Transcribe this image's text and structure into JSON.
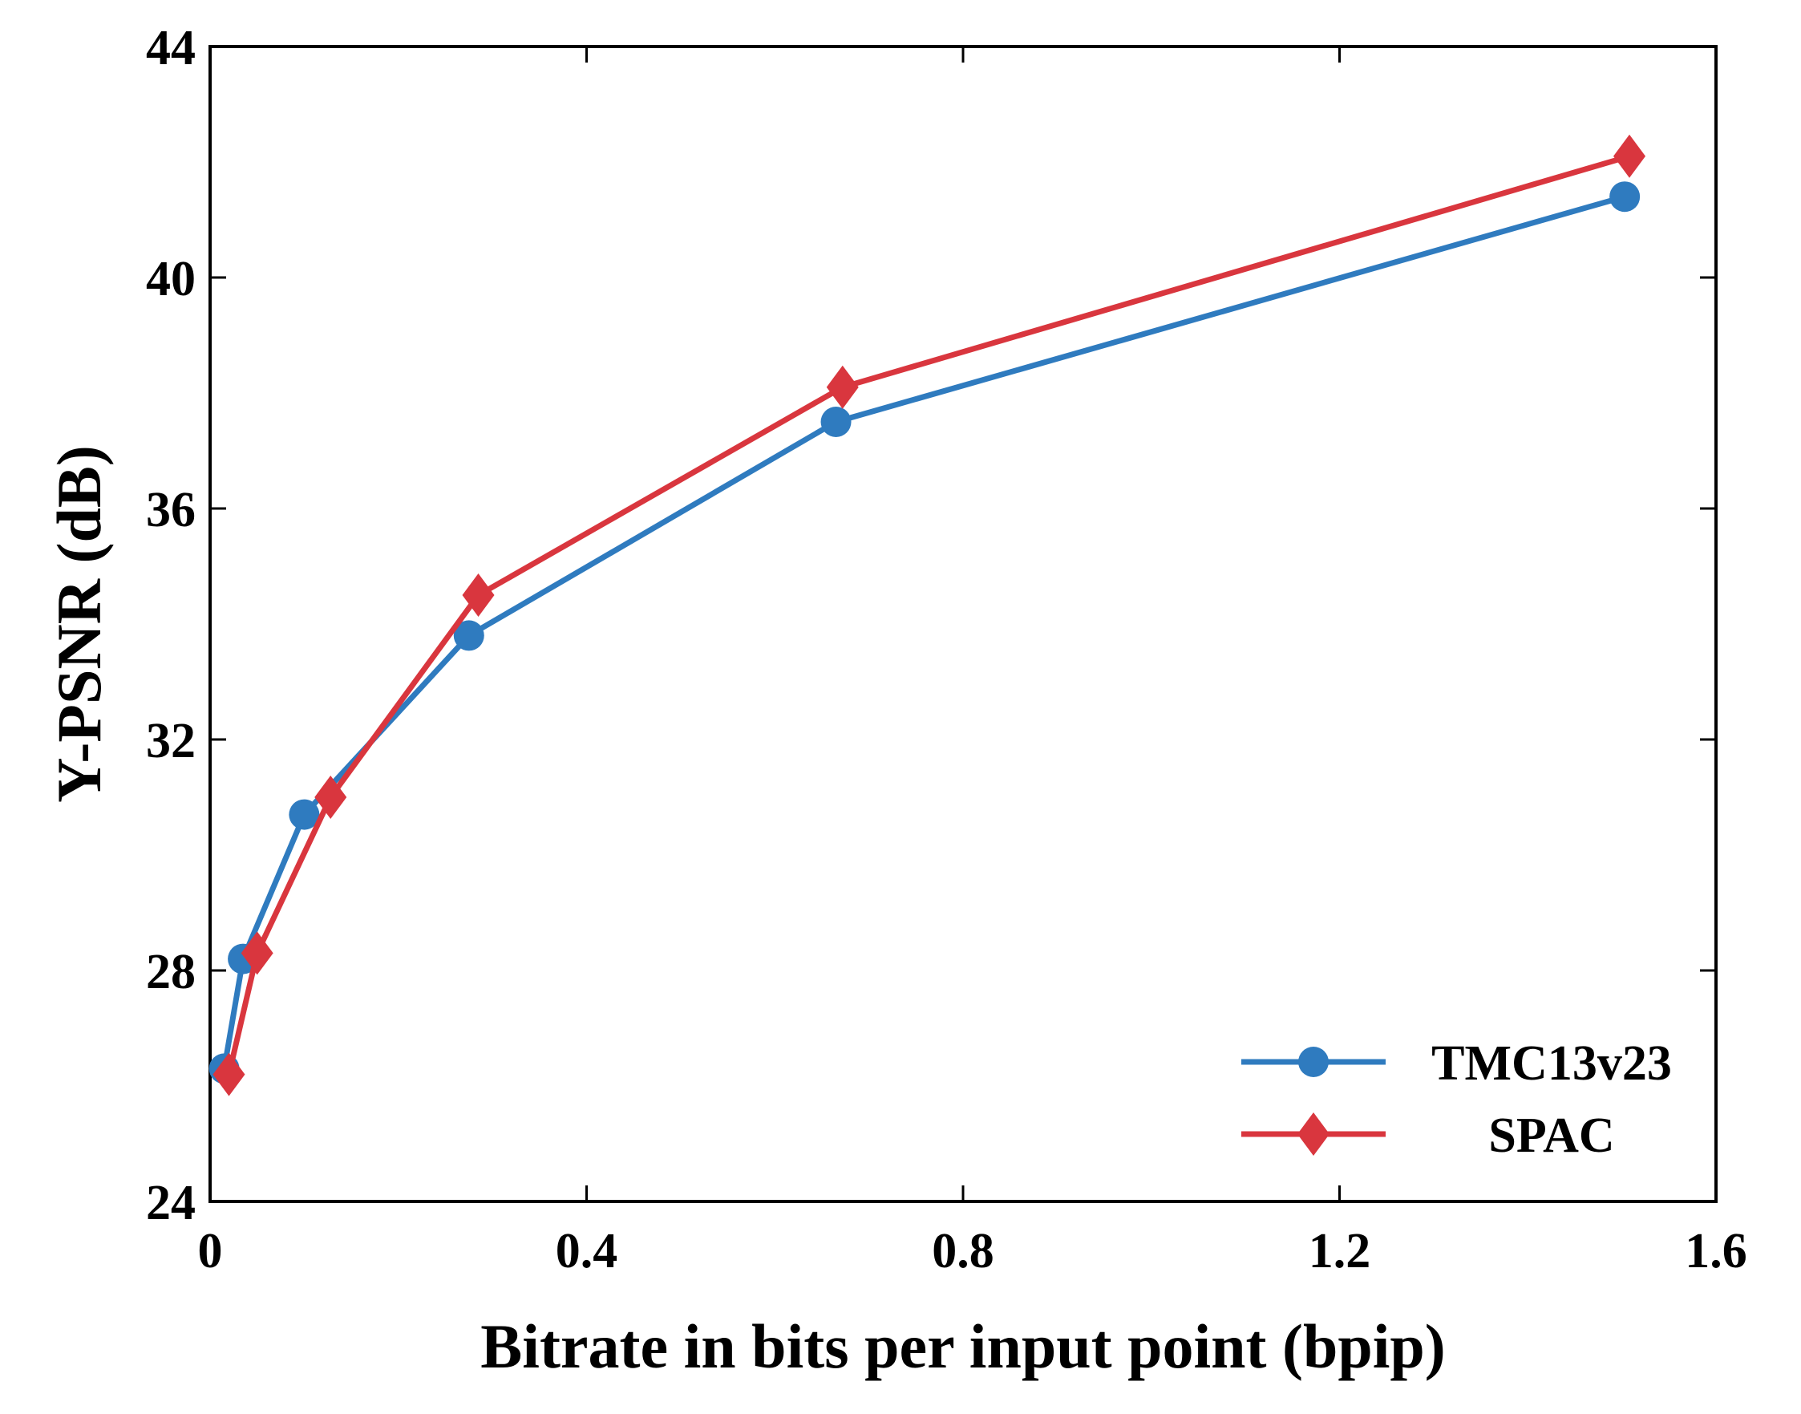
{
  "chart_data": {
    "type": "line",
    "title": "",
    "xlabel": "Bitrate in bits per input point (bpip)",
    "ylabel": "Y-PSNR (dB)",
    "xlim": [
      0,
      1.6
    ],
    "ylim": [
      24,
      44
    ],
    "xticks": [
      0,
      0.4,
      0.8,
      1.2,
      1.6
    ],
    "xtick_labels": [
      "0",
      "0.4",
      "0.8",
      "1.2",
      "1.6"
    ],
    "yticks": [
      24,
      28,
      32,
      36,
      40,
      44
    ],
    "ytick_labels": [
      "24",
      "28",
      "32",
      "36",
      "40",
      "44"
    ],
    "grid": false,
    "legend_position": "bottom-right",
    "series": [
      {
        "name": "TMC13v23",
        "color": "#2f7bbf",
        "marker": "circle",
        "x": [
          0.015,
          0.035,
          0.1,
          0.275,
          0.665,
          1.503
        ],
        "y": [
          26.3,
          28.2,
          30.7,
          33.8,
          37.5,
          41.4
        ]
      },
      {
        "name": "SPAC",
        "color": "#d9363e",
        "marker": "diamond",
        "x": [
          0.02,
          0.05,
          0.128,
          0.285,
          0.672,
          1.508
        ],
        "y": [
          26.2,
          28.3,
          31.0,
          34.5,
          38.1,
          42.1
        ]
      }
    ]
  }
}
